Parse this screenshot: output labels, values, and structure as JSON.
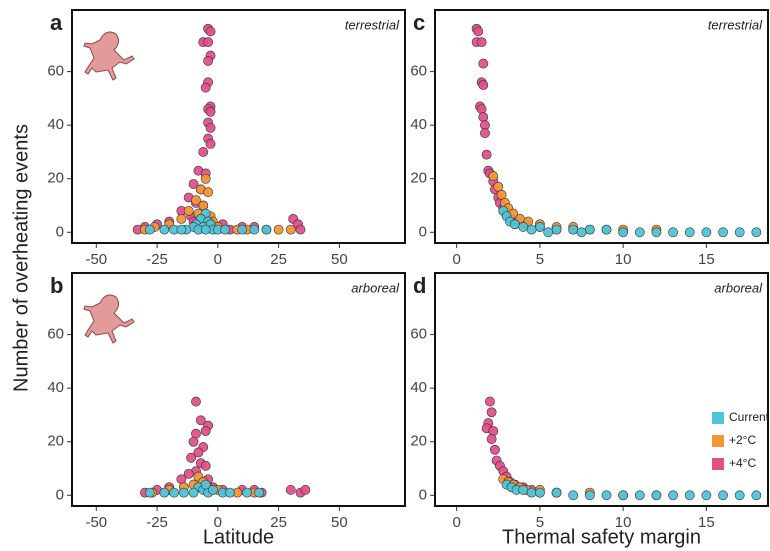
{
  "chart_data": [
    {
      "type": "scatter",
      "label": "a",
      "annotation": "terrestrial",
      "ylabel": "Number of overheating events",
      "xlim": [
        -60,
        77
      ],
      "ylim": [
        -4,
        83
      ],
      "xticks": [
        -50,
        -25,
        0,
        25,
        50
      ],
      "yticks": [
        0,
        20,
        40,
        60
      ],
      "series": [
        {
          "name": "Current",
          "color": "#4fc4d6",
          "x": [
            -5,
            -7,
            -4,
            -9,
            -10,
            -13,
            -18,
            -22,
            -28,
            -6,
            -3,
            -2,
            0,
            3,
            10,
            15,
            20,
            -15,
            -8,
            -5
          ],
          "values": [
            7,
            5,
            4,
            3,
            2,
            1,
            1,
            1,
            1,
            2,
            3,
            1,
            1,
            1,
            1,
            1,
            1,
            1,
            1,
            1
          ]
        },
        {
          "name": "+2°C",
          "color": "#f39637",
          "x": [
            -5,
            -7,
            -4,
            -9,
            -6,
            -12,
            -8,
            -15,
            -3,
            -20,
            -26,
            -30,
            -2,
            0,
            12,
            25,
            30,
            8
          ],
          "values": [
            20,
            16,
            15,
            12,
            10,
            8,
            7,
            5,
            6,
            3,
            2,
            1,
            4,
            2,
            1,
            1,
            1,
            1
          ]
        },
        {
          "name": "+4°C",
          "color": "#e2508c",
          "x": [
            -4,
            -3,
            -6,
            -4,
            -3,
            -4,
            -4,
            -5,
            -3,
            -4,
            -3,
            -4,
            -3,
            -4,
            -3,
            -6,
            -8,
            -5,
            -10,
            -7,
            -12,
            -9,
            -6,
            -15,
            -11,
            -20,
            -25,
            -30,
            -33,
            -10,
            -5,
            2,
            10,
            15,
            20,
            31,
            33,
            34,
            -1,
            5
          ],
          "values": [
            76,
            75,
            71,
            71,
            66,
            64,
            56,
            54,
            47,
            46,
            45,
            41,
            39,
            35,
            33,
            30,
            23,
            22,
            18,
            16,
            13,
            11,
            10,
            8,
            6,
            4,
            3,
            2,
            1,
            4,
            5,
            3,
            2,
            2,
            1,
            5,
            3,
            1,
            2,
            1
          ]
        }
      ]
    },
    {
      "type": "scatter",
      "label": "b",
      "annotation": "arboreal",
      "xlabel": "Latitude",
      "xlim": [
        -60,
        77
      ],
      "ylim": [
        -4,
        83
      ],
      "xticks": [
        -50,
        -25,
        0,
        25,
        50
      ],
      "yticks": [
        0,
        20,
        40,
        60
      ],
      "series": [
        {
          "name": "Current",
          "color": "#4fc4d6",
          "x": [
            -8,
            -6,
            -10,
            -14,
            -18,
            -22,
            -28,
            -4,
            -2,
            2,
            5,
            12,
            17,
            -5
          ],
          "values": [
            3,
            2,
            1,
            1,
            1,
            1,
            1,
            1,
            2,
            1,
            1,
            1,
            1,
            4
          ]
        },
        {
          "name": "+2°C",
          "color": "#f39637",
          "x": [
            -8,
            -6,
            -10,
            -14,
            -20,
            -27,
            -4,
            0,
            8,
            15
          ],
          "values": [
            7,
            5,
            4,
            3,
            2,
            1,
            3,
            2,
            1,
            1
          ]
        },
        {
          "name": "+4°C",
          "color": "#e2508c",
          "x": [
            -9,
            -7,
            -4,
            -5,
            -9,
            -10,
            -6,
            -8,
            -11,
            -7,
            -5,
            -9,
            -12,
            -15,
            -20,
            -25,
            -30,
            -4,
            -2,
            2,
            10,
            15,
            18,
            30,
            34,
            36
          ],
          "values": [
            35,
            28,
            26,
            24,
            23,
            20,
            18,
            16,
            14,
            12,
            11,
            9,
            8,
            6,
            3,
            2,
            1,
            6,
            3,
            2,
            2,
            2,
            1,
            2,
            1,
            2
          ]
        }
      ]
    },
    {
      "type": "scatter",
      "label": "c",
      "annotation": "terrestrial",
      "xlim": [
        -1.3,
        18.7
      ],
      "ylim": [
        -4,
        83
      ],
      "xticks": [
        0,
        5,
        10,
        15
      ],
      "yticks": [
        0,
        20,
        40,
        60
      ],
      "series": [
        {
          "name": "Current",
          "color": "#4fc4d6",
          "x": [
            2.8,
            3.0,
            3.2,
            3.5,
            4,
            5,
            6,
            7,
            8,
            9,
            10,
            11,
            12,
            13,
            14,
            15,
            16,
            17,
            18,
            4.5,
            5.5,
            7.5
          ],
          "values": [
            8,
            6,
            4,
            3,
            2,
            2,
            1,
            1,
            1,
            1,
            0,
            0,
            0,
            0,
            0,
            0,
            0,
            0,
            0,
            1,
            0,
            0
          ]
        },
        {
          "name": "+2°C",
          "color": "#f39637",
          "x": [
            2.2,
            2.5,
            2.7,
            2.9,
            3.1,
            3.4,
            3.8,
            4.3,
            5,
            6,
            7,
            8,
            9,
            10,
            12
          ],
          "values": [
            21,
            17,
            14,
            11,
            9,
            7,
            5,
            4,
            3,
            2,
            2,
            1,
            1,
            1,
            1
          ]
        },
        {
          "name": "+4°C",
          "color": "#e2508c",
          "x": [
            1.2,
            1.3,
            1.2,
            1.5,
            1.6,
            1.5,
            1.6,
            1.4,
            1.5,
            1.6,
            1.7,
            1.7,
            1.8,
            1.9,
            2.0,
            2.2,
            2.3,
            2.5,
            2.6,
            2.8,
            3.0,
            3.3,
            3.7,
            4.2,
            5,
            6,
            7
          ],
          "values": [
            76,
            75,
            71,
            71,
            63,
            56,
            55,
            47,
            46,
            43,
            40,
            37,
            29,
            23,
            22,
            19,
            16,
            13,
            11,
            9,
            7,
            5,
            4,
            3,
            2,
            1,
            1
          ]
        }
      ]
    },
    {
      "type": "scatter",
      "label": "d",
      "annotation": "arboreal",
      "xlabel": "Thermal safety margin",
      "legend": "right",
      "xlim": [
        -1.3,
        18.7
      ],
      "ylim": [
        -4,
        83
      ],
      "xticks": [
        0,
        5,
        10,
        15
      ],
      "yticks": [
        0,
        20,
        40,
        60
      ],
      "series": [
        {
          "name": "Current",
          "color": "#4fc4d6",
          "x": [
            3.0,
            3.3,
            3.6,
            4,
            4.5,
            5,
            6,
            7,
            8,
            9,
            10,
            11,
            12,
            13,
            14,
            15,
            16,
            17,
            18
          ],
          "values": [
            4,
            3,
            2,
            2,
            1,
            1,
            1,
            0,
            0,
            0,
            0,
            0,
            0,
            0,
            0,
            0,
            0,
            0,
            0
          ]
        },
        {
          "name": "+2°C",
          "color": "#f39637",
          "x": [
            2.8,
            3.1,
            3.4,
            3.8,
            4.2,
            5,
            6,
            8,
            10,
            12
          ],
          "values": [
            6,
            5,
            4,
            3,
            2,
            2,
            1,
            1,
            0,
            0
          ]
        },
        {
          "name": "+4°C",
          "color": "#e2508c",
          "x": [
            2.0,
            2.1,
            1.9,
            1.8,
            2.2,
            2.1,
            2.3,
            2.4,
            2.6,
            2.8,
            3.0,
            3.2,
            3.5,
            4,
            4.5,
            5,
            6
          ],
          "values": [
            35,
            31,
            27,
            25,
            24,
            21,
            17,
            13,
            11,
            9,
            7,
            5,
            4,
            3,
            2,
            1,
            1
          ]
        }
      ]
    }
  ]
}
